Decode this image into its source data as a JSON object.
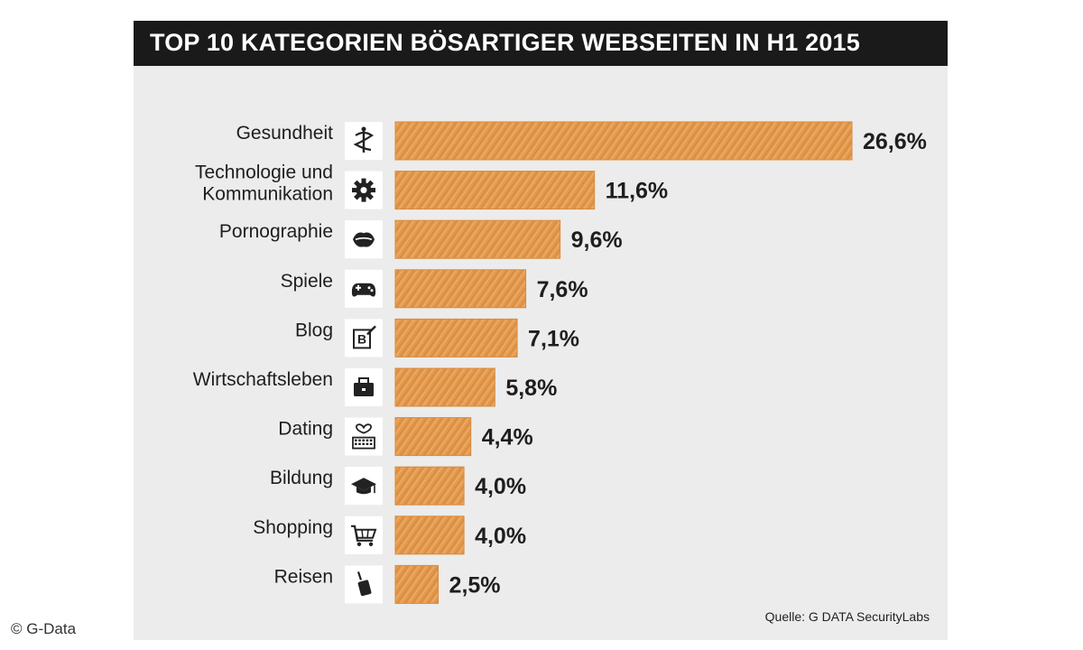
{
  "chart_data": {
    "type": "bar",
    "orientation": "horizontal",
    "title": "TOP 10 KATEGORIEN BÖSARTIGER WEBSEITEN IN H1 2015",
    "categories": [
      [
        "Gesundheit"
      ],
      [
        "Technologie und",
        "Kommunikation"
      ],
      [
        "Pornographie"
      ],
      [
        "Spiele"
      ],
      [
        "Blog"
      ],
      [
        "Wirtschaftsleben"
      ],
      [
        "Dating"
      ],
      [
        "Bildung"
      ],
      [
        "Shopping"
      ],
      [
        "Reisen"
      ]
    ],
    "values": [
      26.6,
      11.6,
      9.6,
      7.6,
      7.1,
      5.8,
      4.4,
      4.0,
      4.0,
      2.5
    ],
    "value_labels": [
      "26,6%",
      "11,6%",
      "9,6%",
      "7,6%",
      "7,1%",
      "5,8%",
      "4,4%",
      "4,0%",
      "4,0%",
      "2,5%"
    ],
    "icons": [
      "caduceus-icon",
      "gear-icon",
      "lips-icon",
      "gamepad-icon",
      "blog-icon",
      "briefcase-icon",
      "keyboard-heart-icon",
      "graduation-cap-icon",
      "shopping-cart-icon",
      "luggage-icon"
    ],
    "bar_color": "#e39a4e",
    "xlim": [
      0,
      26.6
    ]
  },
  "source": "Quelle: G DATA SecurityLabs",
  "copyright": "© G-Data"
}
